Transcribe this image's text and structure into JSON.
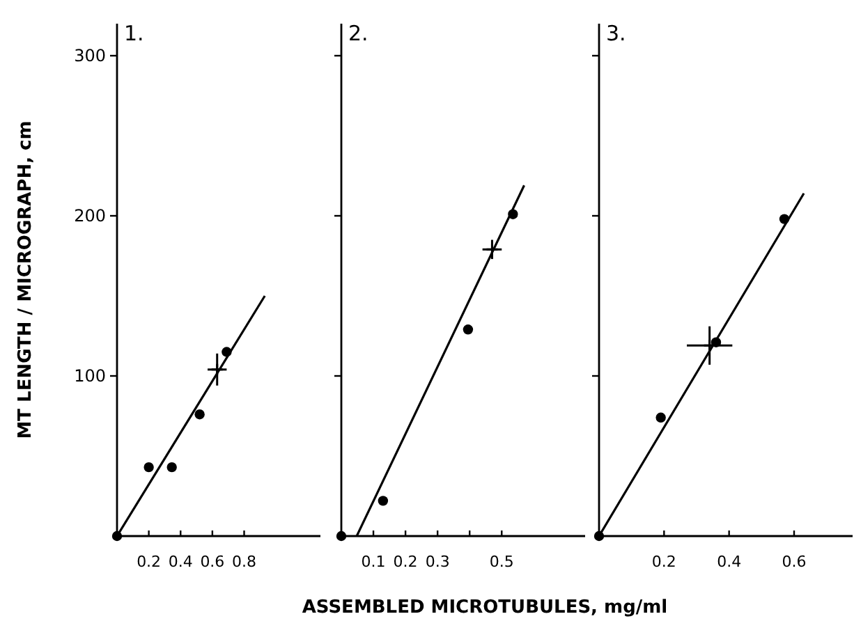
{
  "chart_data": [
    {
      "type": "scatter",
      "title": "1.",
      "ylabel": "MT LENGTH / MICROGRAPH, cm",
      "xlim": [
        0,
        1.28
      ],
      "xticks": [
        0.2,
        0.4,
        0.6,
        0.8
      ],
      "ylim": [
        0,
        320
      ],
      "yticks": [
        100,
        200,
        300
      ],
      "grid": false,
      "series": [
        {
          "color": "#000000",
          "marker": "circle",
          "x": [
            0,
            0.2,
            0.345,
            0.52,
            0.69
          ],
          "values": [
            0,
            43,
            43,
            76,
            115
          ]
        },
        {
          "color": "#000000",
          "marker": "cross",
          "x": [
            0.63
          ],
          "values": [
            104
          ],
          "xerrors": [
            0.06
          ],
          "errors": [
            10
          ]
        },
        {
          "type": "line",
          "color": "#000000",
          "x": [
            0,
            0.93
          ],
          "values": [
            0,
            150
          ]
        }
      ]
    },
    {
      "type": "scatter",
      "title": "2.",
      "xlabel": "ASSEMBLED MICROTUBULES, mg/ml",
      "xlim": [
        0,
        0.76
      ],
      "xticks": [
        0.1,
        0.2,
        0.3,
        {
          "value": 0.4,
          "label": null
        },
        0.5
      ],
      "ylim": [
        0,
        320
      ],
      "yticks": [
        100,
        200,
        300
      ],
      "tick_labels": "x",
      "grid": false,
      "series": [
        {
          "color": "#000000",
          "marker": "circle",
          "x": [
            0,
            0.13,
            0.395,
            0.535
          ],
          "values": [
            0,
            22,
            129,
            201
          ]
        },
        {
          "color": "#000000",
          "marker": "cross",
          "x": [
            0.47
          ],
          "values": [
            179
          ],
          "xerrors": [
            0.03
          ],
          "errors": [
            6
          ]
        },
        {
          "type": "line",
          "color": "#000000",
          "x": [
            0.048,
            0.57
          ],
          "values": [
            0,
            219
          ]
        }
      ]
    },
    {
      "type": "scatter",
      "title": "3.",
      "xlim": [
        0,
        0.78
      ],
      "xticks": [
        0.2,
        0.4,
        0.6
      ],
      "ylim": [
        0,
        320
      ],
      "yticks": [
        100,
        200,
        300
      ],
      "tick_labels": "x",
      "grid": false,
      "series": [
        {
          "color": "#000000",
          "marker": "circle",
          "x": [
            0,
            0.19,
            0.36,
            0.57
          ],
          "values": [
            0,
            74,
            121,
            198
          ]
        },
        {
          "color": "#000000",
          "marker": "cross",
          "x": [
            0.34
          ],
          "values": [
            119
          ],
          "xerrors": [
            0.07
          ],
          "errors": [
            12
          ]
        },
        {
          "type": "line",
          "color": "#000000",
          "x": [
            0,
            0.63
          ],
          "values": [
            0,
            214
          ]
        }
      ]
    }
  ]
}
